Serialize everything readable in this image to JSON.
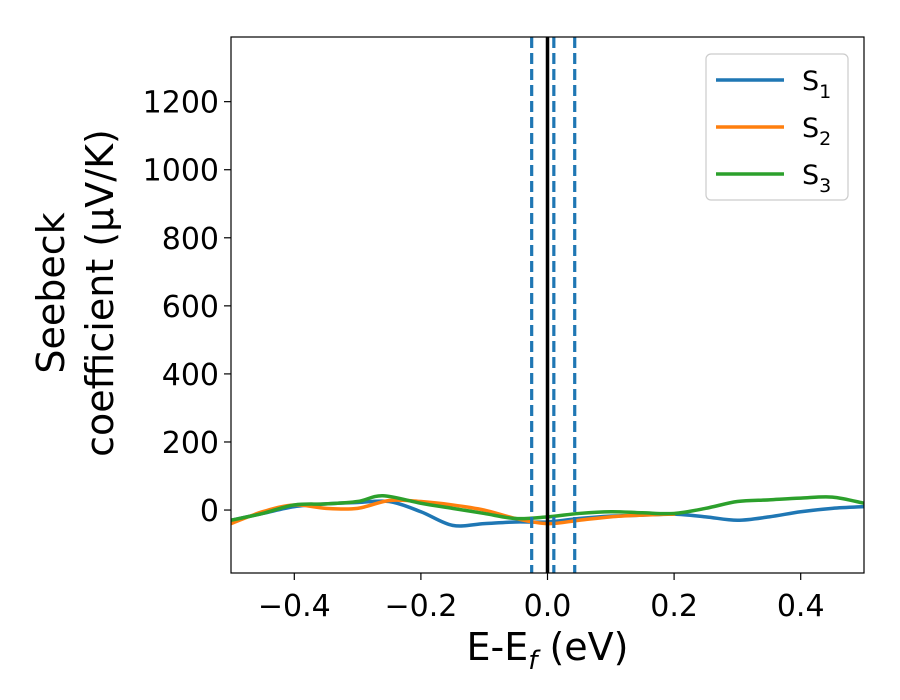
{
  "chart_data": {
    "type": "line",
    "title": "",
    "xlabel": {
      "base": "E-E",
      "sub": "f",
      "suffix": " (eV)"
    },
    "ylabel": {
      "line1": "Seebeck",
      "line2": "coefficient  (μV/K)"
    },
    "xlim": [
      -0.5,
      0.5
    ],
    "ylim": [
      -185,
      1390
    ],
    "xticks": [
      -0.4,
      -0.2,
      0.0,
      0.2,
      0.4
    ],
    "xtick_labels": [
      "−0.4",
      "−0.2",
      "0.0",
      "0.2",
      "0.4"
    ],
    "yticks": [
      0,
      200,
      400,
      600,
      800,
      1000,
      1200
    ],
    "ytick_labels": [
      "0",
      "200",
      "400",
      "600",
      "800",
      "1000",
      "1200"
    ],
    "grid": false,
    "legend_position": "top-right",
    "vertical_lines": [
      {
        "x": 0.0,
        "style": "solid",
        "color": "#000000"
      },
      {
        "x": -0.025,
        "style": "dashed",
        "color": "#1f77b4"
      },
      {
        "x": 0.01,
        "style": "dashed",
        "color": "#1f77b4"
      },
      {
        "x": 0.043,
        "style": "dashed",
        "color": "#1f77b4"
      }
    ],
    "series": [
      {
        "name": "S",
        "name_sub": "1",
        "color": "#1f77b4",
        "x": [
          -0.5,
          -0.45,
          -0.4,
          -0.35,
          -0.3,
          -0.25,
          -0.2,
          -0.15,
          -0.1,
          -0.05,
          0.0,
          0.05,
          0.1,
          0.15,
          0.2,
          0.25,
          0.3,
          0.35,
          0.4,
          0.45,
          0.5
        ],
        "y": [
          -30,
          -10,
          10,
          18,
          22,
          25,
          -5,
          -45,
          -40,
          -35,
          -35,
          -25,
          -18,
          -15,
          -12,
          -20,
          -30,
          -20,
          -5,
          5,
          10
        ]
      },
      {
        "name": "S",
        "name_sub": "2",
        "color": "#ff7f0e",
        "x": [
          -0.5,
          -0.45,
          -0.4,
          -0.35,
          -0.3,
          -0.25,
          -0.2,
          -0.15,
          -0.1,
          -0.05,
          0.0,
          0.05,
          0.1,
          0.15,
          0.2
        ],
        "y": [
          -40,
          -5,
          15,
          5,
          5,
          28,
          25,
          15,
          0,
          -25,
          -40,
          -30,
          -20,
          -15,
          -12
        ]
      },
      {
        "name": "S",
        "name_sub": "3",
        "color": "#2ca02c",
        "x": [
          -0.5,
          -0.45,
          -0.4,
          -0.35,
          -0.3,
          -0.26,
          -0.2,
          -0.15,
          -0.1,
          -0.05,
          0.0,
          0.05,
          0.1,
          0.15,
          0.2,
          0.25,
          0.3,
          0.35,
          0.4,
          0.45,
          0.5
        ],
        "y": [
          -30,
          -10,
          15,
          18,
          25,
          42,
          20,
          5,
          -10,
          -25,
          -20,
          -10,
          -5,
          -8,
          -10,
          5,
          25,
          30,
          35,
          38,
          20
        ]
      }
    ]
  }
}
